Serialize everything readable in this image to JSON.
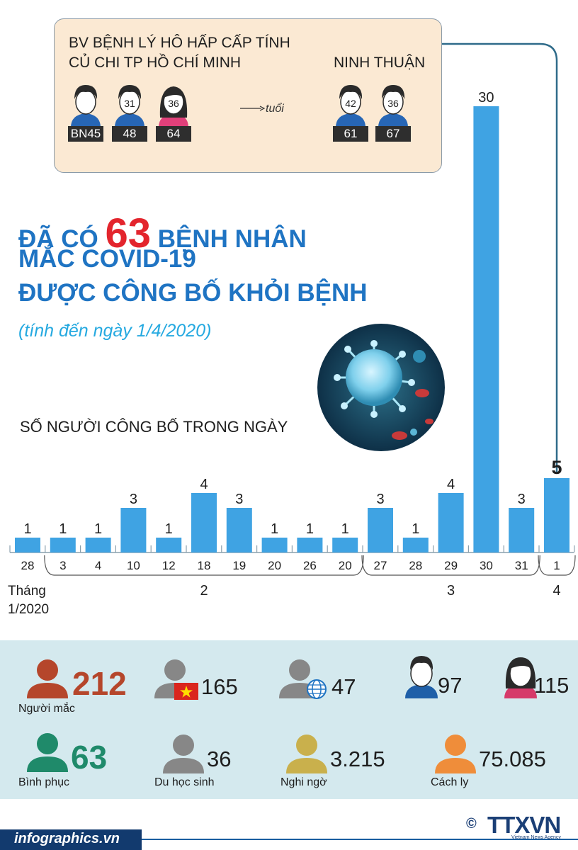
{
  "info_box": {
    "hospital_line1": "BV BỆNH LÝ HÔ HẤP CẤP TÍNH",
    "hospital_line2": "CỦ CHI TP HỒ CHÍ MINH",
    "province": "NINH THUẬN",
    "age_unit": "tuổi",
    "patients": [
      {
        "id": "BN45",
        "age": "",
        "gender": "male"
      },
      {
        "id": "48",
        "age": "31",
        "gender": "male"
      },
      {
        "id": "64",
        "age": "36",
        "gender": "female"
      },
      {
        "id": "61",
        "age": "42",
        "gender": "male"
      },
      {
        "id": "67",
        "age": "36",
        "gender": "male"
      }
    ]
  },
  "headline": {
    "prefix": "ĐÃ CÓ",
    "number": "63",
    "suffix": "BỆNH NHÂN",
    "line2": "MẮC COVID-19",
    "line3": "ĐƯỢC CÔNG BỐ KHỎI BỆNH",
    "subtitle": "(tính đến ngày 1/4/2020)"
  },
  "chart_data": {
    "type": "bar",
    "title": "SỐ NGƯỜI CÔNG BỐ TRONG NGÀY",
    "categories": [
      "28",
      "3",
      "4",
      "10",
      "12",
      "18",
      "19",
      "20",
      "26",
      "20",
      "27",
      "28",
      "29",
      "30",
      "31",
      "1"
    ],
    "values": [
      1,
      1,
      1,
      3,
      1,
      4,
      3,
      1,
      1,
      1,
      3,
      1,
      4,
      30,
      3,
      5
    ],
    "month_label": "Tháng",
    "months": [
      {
        "label": "1/2020",
        "indices": [
          0
        ]
      },
      {
        "label": "2",
        "indices": [
          1,
          2,
          3,
          4,
          5,
          6,
          7,
          8,
          9
        ]
      },
      {
        "label": "3",
        "indices": [
          10,
          11,
          12,
          13,
          14
        ]
      },
      {
        "label": "4",
        "indices": [
          15
        ]
      }
    ],
    "highlight_index": 15,
    "colors": {
      "bar": "#3fa3e3",
      "highlight_bar": "#3fa3e3"
    }
  },
  "stats": [
    {
      "value": "212",
      "label": "Người mắc",
      "color": "#b5462b",
      "icon": "person-icon"
    },
    {
      "value": "165",
      "label": "",
      "color": "#878787",
      "icon": "vietnam-flag-icon"
    },
    {
      "value": "47",
      "label": "",
      "color": "#878787",
      "icon": "globe-icon"
    },
    {
      "value": "97",
      "label": "",
      "color": "#1e5fa8",
      "icon": "male-icon"
    },
    {
      "value": "115",
      "label": "",
      "color": "#d63a6a",
      "icon": "female-icon"
    },
    {
      "value": "63",
      "label": "Bình phục",
      "color": "#1f8a6a",
      "icon": "person-icon"
    },
    {
      "value": "36",
      "label": "Du học sinh",
      "color": "#878787",
      "icon": "person-icon"
    },
    {
      "value": "3.215",
      "label": "Nghi ngờ",
      "color": "#c9b04c",
      "icon": "person-icon"
    },
    {
      "value": "75.085",
      "label": "Cách ly",
      "color": "#ef8d3a",
      "icon": "person-icon"
    }
  ],
  "footer": {
    "site": "infographics.vn",
    "copyright": "©",
    "logo": "TTXVN",
    "logo_sub": "Vietnam News Agency"
  }
}
